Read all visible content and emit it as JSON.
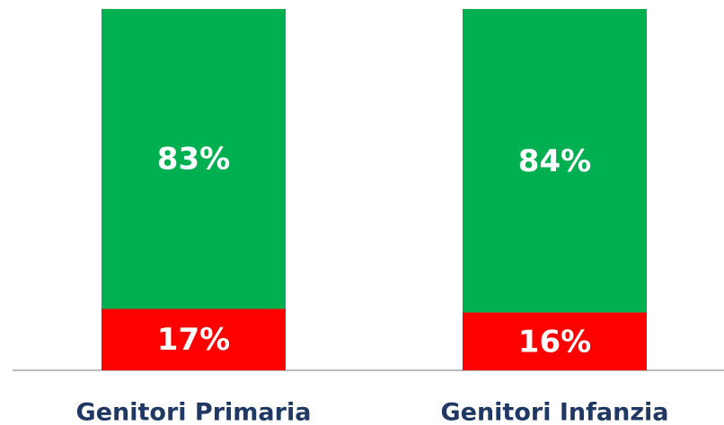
{
  "chart_data": {
    "type": "stacked_bar",
    "categories": [
      "Genitori Primaria",
      "Genitori Infanzia"
    ],
    "series": [
      {
        "color": "#ff0000",
        "values": [
          17,
          16
        ],
        "value_labels": [
          "17%",
          "16%"
        ]
      },
      {
        "color": "#00b050",
        "values": [
          83,
          84
        ],
        "value_labels": [
          "83%",
          "84%"
        ]
      }
    ],
    "ylim": [
      0,
      100
    ]
  }
}
